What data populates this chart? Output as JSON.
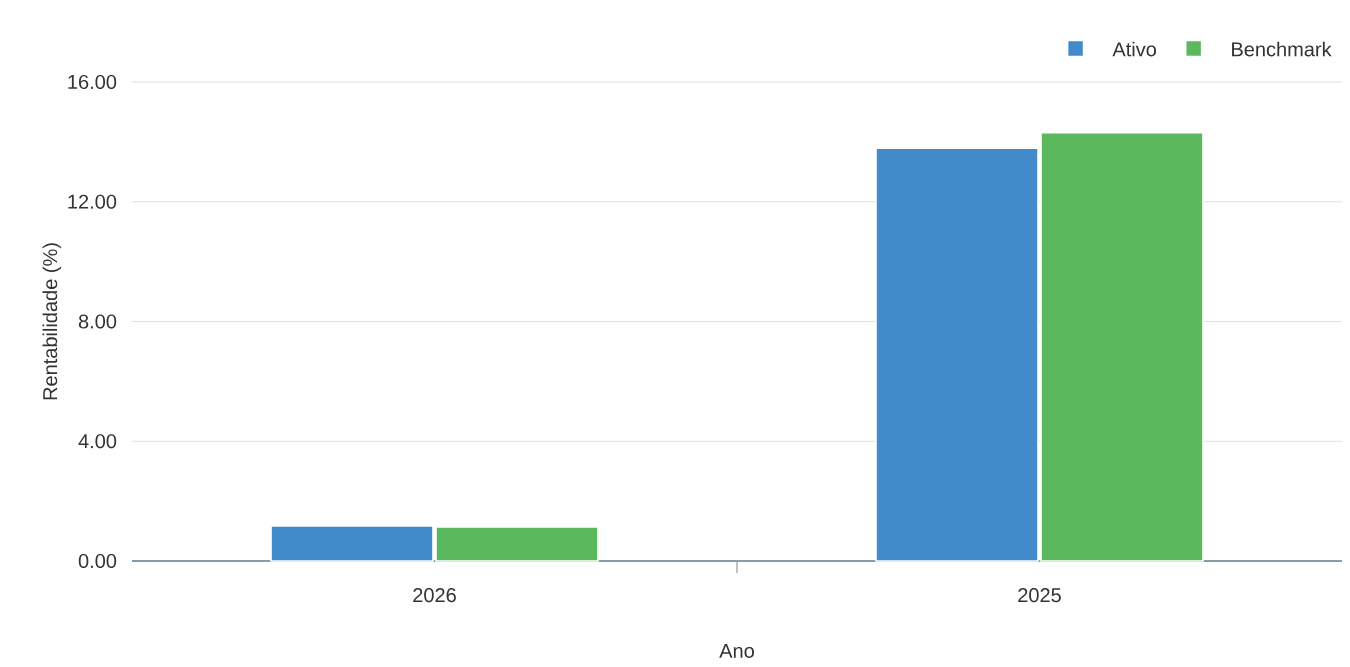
{
  "chart_data": {
    "type": "bar",
    "xlabel": "Ano",
    "ylabel": "Rentabilidade (%)",
    "categories": [
      "2026",
      "2025"
    ],
    "series": [
      {
        "name": "Ativo",
        "color": "#428bca",
        "values": [
          1.17,
          13.79
        ]
      },
      {
        "name": "Benchmark",
        "color": "#5cb85c",
        "values": [
          1.14,
          14.31
        ]
      }
    ],
    "ylim": [
      0,
      16
    ],
    "yticks": [
      {
        "value": 0,
        "label": "0.00"
      },
      {
        "value": 4,
        "label": "4.00"
      },
      {
        "value": 8,
        "label": "8.00"
      },
      {
        "value": 12,
        "label": "12.00"
      },
      {
        "value": 16,
        "label": "16.00"
      }
    ],
    "grid": "y",
    "legend": "top right"
  }
}
